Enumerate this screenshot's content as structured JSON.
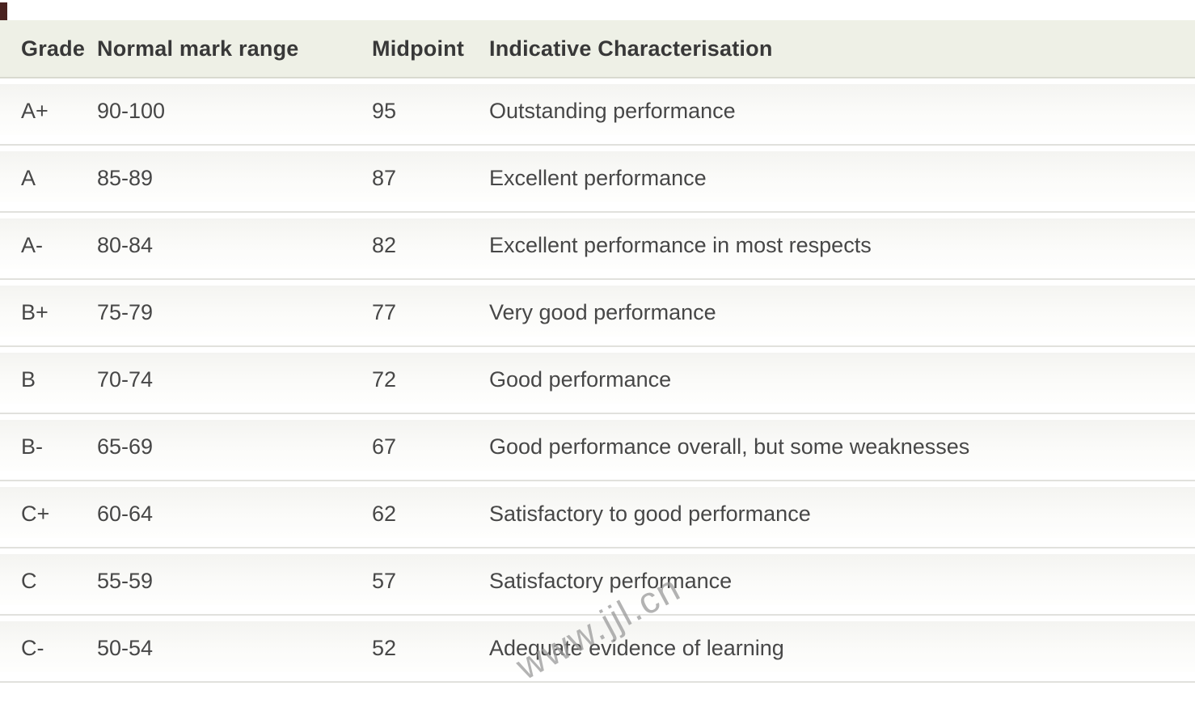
{
  "page": {
    "watermark": "www.jjl.cn"
  },
  "grade_table": {
    "headers": [
      "Grade",
      "Normal mark range",
      "Midpoint",
      "Indicative Characterisation"
    ],
    "rows": [
      [
        "A+",
        "90-100",
        "95",
        "Outstanding performance"
      ],
      [
        "A",
        "85-89",
        "87",
        "Excellent performance"
      ],
      [
        "A-",
        "80-84",
        "82",
        "Excellent performance in most respects"
      ],
      [
        "B+",
        "75-79",
        "77",
        "Very good performance"
      ],
      [
        "B",
        "70-74",
        "72",
        "Good performance"
      ],
      [
        "B-",
        "65-69",
        "67",
        "Good performance overall, but some weaknesses"
      ],
      [
        "C+",
        "60-64",
        "62",
        "Satisfactory to good performance"
      ],
      [
        "C",
        "55-59",
        "57",
        "Satisfactory performance"
      ],
      [
        "C-",
        "50-54",
        "52",
        "Adequate evidence of learning"
      ]
    ]
  },
  "colors": {
    "header_bg": "#eef0e6",
    "header_border": "#d9dacf",
    "row_band": "#f4f4f1",
    "divider": "#e1e1dd",
    "header_text": "#383838",
    "body_text": "#474747",
    "watermark": "#9a9a9a",
    "corner_artifact": "#4a2220"
  }
}
